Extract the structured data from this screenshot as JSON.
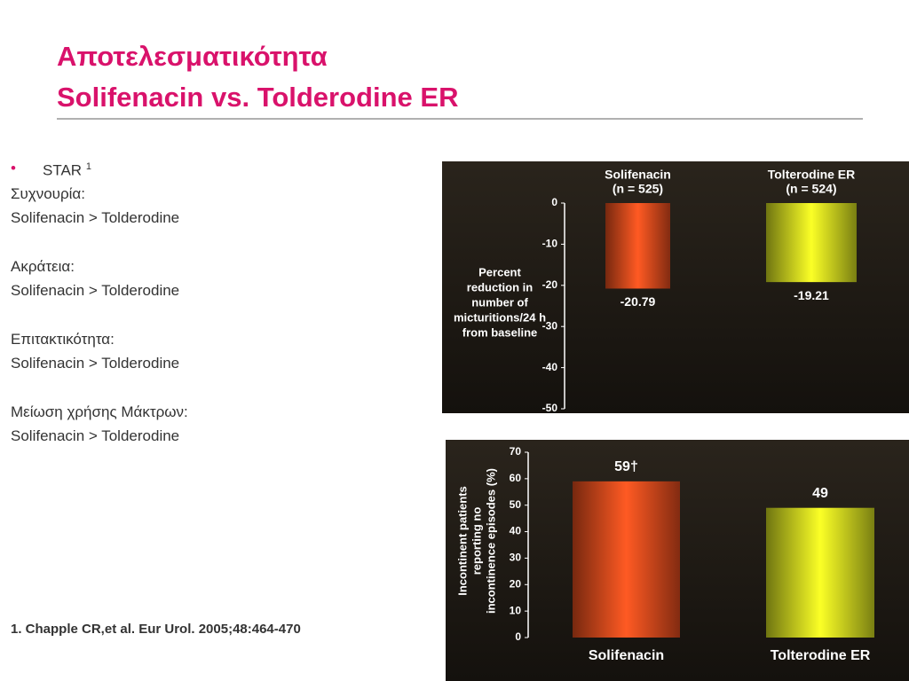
{
  "title": [
    "Αποτελεσματικότητα",
    "Solifenacin vs. Tolderodine ER"
  ],
  "bullet": {
    "text": "STAR",
    "ref": "1"
  },
  "sections": [
    {
      "label": "Συχνουρία:",
      "text": "Solifenacin > Tolderodine"
    },
    {
      "label": "Ακράτεια:",
      "text": "Solifenacin > Tolderodine"
    },
    {
      "label": "Επιτακτικότητα:",
      "text": "Solifenacin > Tolderodine"
    },
    {
      "label": "Μείωση χρήσης Μάκτρων:",
      "text": "Solifenacin > Tolderodine"
    }
  ],
  "footnote": "1. Chapple CR,et al. Eur Urol. 2005;48:464-470",
  "chart_data": [
    {
      "type": "bar",
      "categories": [
        "Solifenacin",
        "Tolterodine ER"
      ],
      "category_notes": [
        "(n = 525)",
        "(n = 524)"
      ],
      "values": [
        -20.79,
        -19.21
      ],
      "colors": [
        "#d9481c",
        "#c9d41e"
      ],
      "ylim": [
        -50,
        0
      ],
      "yticks": [
        0,
        -10,
        -20,
        -30,
        -40,
        -50
      ],
      "ylabel": [
        "Percent",
        "reduction in",
        "number of",
        "micturitions/24 h",
        "from baseline"
      ]
    },
    {
      "type": "bar",
      "categories": [
        "Solifenacin",
        "Tolterodine ER"
      ],
      "values": [
        59,
        49
      ],
      "value_labels": [
        "59†",
        "49"
      ],
      "colors": [
        "#d9481c",
        "#c9d41e"
      ],
      "ylim": [
        0,
        70
      ],
      "yticks": [
        0,
        10,
        20,
        30,
        40,
        50,
        60,
        70
      ],
      "ylabel": [
        "Incontinent patients",
        "reporting no",
        "incontinence episodes (%)"
      ]
    }
  ]
}
